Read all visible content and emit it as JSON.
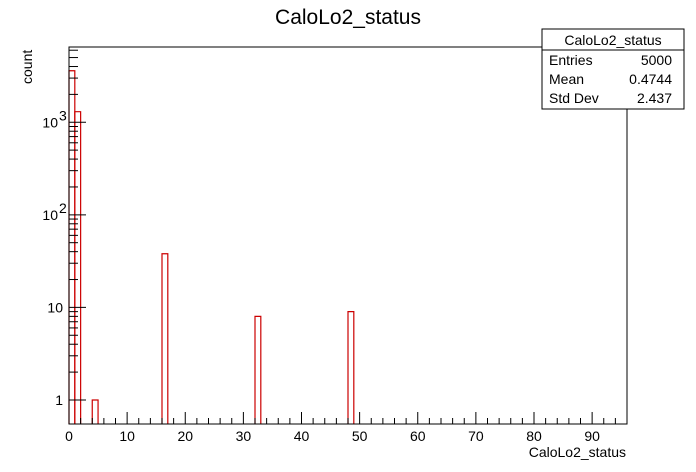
{
  "chart_data": {
    "type": "histogram",
    "title": "CaloLo2_status",
    "xlabel": "CaloLo2_status",
    "ylabel": "count",
    "xlim": [
      0,
      96
    ],
    "ylim": [
      0.55,
      6500
    ],
    "log_y": true,
    "bin_width": 1,
    "x_ticks": [
      0,
      10,
      20,
      30,
      40,
      50,
      60,
      70,
      80,
      90
    ],
    "x_tick_labels": [
      "0",
      "10",
      "20",
      "30",
      "40",
      "50",
      "60",
      "70",
      "80",
      "90"
    ],
    "y_ticks": [
      {
        "value": 1,
        "label": "1",
        "exp": ""
      },
      {
        "value": 10,
        "label": "10",
        "exp": ""
      },
      {
        "value": 100,
        "label": "10",
        "exp": "2"
      },
      {
        "value": 1000,
        "label": "10",
        "exp": "3"
      }
    ],
    "bins": [
      {
        "x": 0,
        "count": 3600
      },
      {
        "x": 1,
        "count": 1300
      },
      {
        "x": 4,
        "count": 1
      },
      {
        "x": 16,
        "count": 38
      },
      {
        "x": 32,
        "count": 8
      },
      {
        "x": 48,
        "count": 9
      }
    ],
    "line_color": "#cc0000",
    "grid": false,
    "legend_position": "top-right",
    "stats": {
      "name": "CaloLo2_status",
      "rows": [
        {
          "label": "Entries",
          "value": "5000"
        },
        {
          "label": "Mean",
          "value": "0.4744"
        },
        {
          "label": "Std Dev",
          "value": "2.437"
        }
      ]
    }
  }
}
